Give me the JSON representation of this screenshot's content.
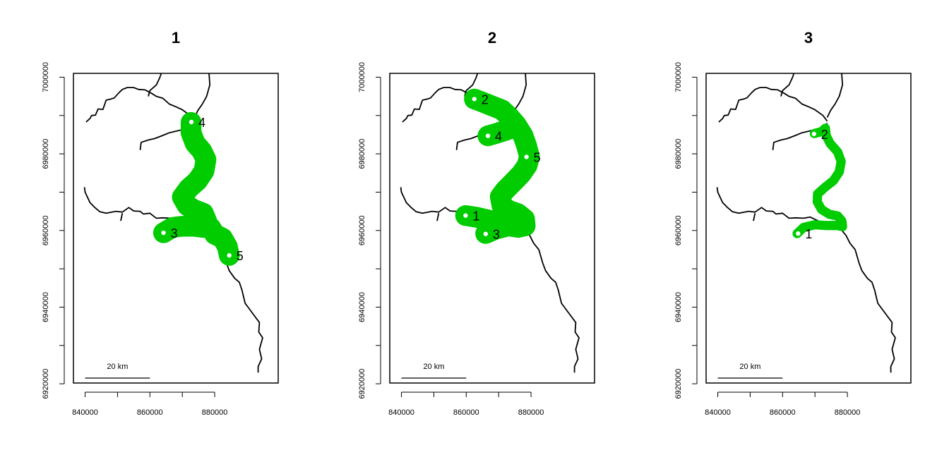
{
  "chart_data": {
    "type": "map",
    "x_ticks": [
      840000,
      860000,
      880000
    ],
    "x_tick_labels": [
      "840000",
      "860000",
      "880000"
    ],
    "y_ticks": [
      6920000,
      6940000,
      6960000,
      6980000,
      7000000
    ],
    "y_tick_labels": [
      "6920000",
      "6940000",
      "6960000",
      "6980000",
      "7000000"
    ],
    "xlim": [
      836400,
      899600
    ],
    "ylim": [
      6920200,
      7001000
    ],
    "scale_bar": {
      "label": "20 km",
      "length": 20000
    },
    "colors": {
      "path": "#00cc00",
      "river": "#000000"
    },
    "rivers": [
      {
        "name": "river-main",
        "points": [
          [
            893400,
            6922900
          ],
          [
            893400,
            6924500
          ],
          [
            894500,
            6926500
          ],
          [
            893800,
            6929000
          ],
          [
            894800,
            6932000
          ],
          [
            893600,
            6933500
          ],
          [
            893800,
            6936000
          ],
          [
            891600,
            6938500
          ],
          [
            889400,
            6941000
          ],
          [
            888400,
            6944500
          ],
          [
            887600,
            6946500
          ],
          [
            886200,
            6947500
          ],
          [
            884500,
            6949500
          ],
          [
            883600,
            6951500
          ],
          [
            882400,
            6955000
          ],
          [
            880800,
            6956700
          ],
          [
            879600,
            6958700
          ],
          [
            878000,
            6960300
          ],
          [
            877000,
            6961500
          ],
          [
            873000,
            6961200
          ],
          [
            871000,
            6962500
          ],
          [
            868500,
            6963500
          ],
          [
            866500,
            6963200
          ],
          [
            864000,
            6963300
          ],
          [
            862000,
            6963200
          ],
          [
            860000,
            6964500
          ],
          [
            858000,
            6964300
          ],
          [
            857000,
            6965000
          ],
          [
            855000,
            6965100
          ],
          [
            853500,
            6966000
          ],
          [
            851500,
            6964800
          ],
          [
            849500,
            6965000
          ],
          [
            846500,
            6964500
          ],
          [
            844500,
            6964900
          ],
          [
            843000,
            6966000
          ],
          [
            841500,
            6967300
          ],
          [
            840000,
            6970000
          ],
          [
            839800,
            6971300
          ]
        ]
      },
      {
        "name": "river-west-branch",
        "points": [
          [
            840300,
            6988300
          ],
          [
            841500,
            6989200
          ],
          [
            842000,
            6990000
          ],
          [
            843200,
            6990100
          ],
          [
            844000,
            6991700
          ],
          [
            845500,
            6991600
          ],
          [
            846500,
            6994000
          ],
          [
            848000,
            6994300
          ],
          [
            849000,
            6994600
          ],
          [
            850500,
            6996000
          ],
          [
            851500,
            6996800
          ],
          [
            853000,
            6997300
          ],
          [
            855000,
            6997300
          ],
          [
            856500,
            6996800
          ],
          [
            858500,
            6996700
          ],
          [
            860500,
            6995800
          ],
          [
            862000,
            6995000
          ],
          [
            864000,
            6994500
          ],
          [
            866000,
            6993000
          ],
          [
            868000,
            6992300
          ],
          [
            870000,
            6991500
          ],
          [
            872500,
            6990000
          ],
          [
            873800,
            6988500
          ]
        ]
      },
      {
        "name": "river-north-branch",
        "points": [
          [
            866000,
            7008000
          ],
          [
            865500,
            7006500
          ],
          [
            865000,
            7005000
          ],
          [
            864500,
            7002000
          ],
          [
            863500,
            7001000
          ],
          [
            863000,
            6999800
          ],
          [
            862000,
            6998000
          ],
          [
            860000,
            6996500
          ],
          [
            859500,
            6995000
          ]
        ]
      },
      {
        "name": "river-east-branch",
        "points": [
          [
            877700,
            7010500
          ],
          [
            878500,
            7009500
          ],
          [
            878800,
            7005500
          ],
          [
            878200,
            7001500
          ],
          [
            878500,
            6998000
          ],
          [
            877500,
            6995000
          ],
          [
            876200,
            6993000
          ],
          [
            874800,
            6991300
          ],
          [
            873800,
            6989500
          ]
        ]
      },
      {
        "name": "river-mid-branch",
        "points": [
          [
            857000,
            6981000
          ],
          [
            857300,
            6983000
          ],
          [
            859500,
            6983600
          ],
          [
            861500,
            6984000
          ],
          [
            864000,
            6984800
          ],
          [
            866000,
            6985500
          ],
          [
            868500,
            6986000
          ],
          [
            871000,
            6986500
          ],
          [
            873000,
            6987300
          ],
          [
            873800,
            6988000
          ]
        ]
      },
      {
        "name": "river-south-spur",
        "points": [
          [
            851000,
            6962500
          ],
          [
            851500,
            6964500
          ]
        ]
      }
    ],
    "panels": [
      {
        "title": "1",
        "path_width_m": 5400,
        "path": [
          [
            864200,
            6959400
          ],
          [
            867000,
            6960800
          ],
          [
            870000,
            6961100
          ],
          [
            873500,
            6961100
          ],
          [
            876500,
            6960800
          ],
          [
            878800,
            6960700
          ],
          [
            880000,
            6959000
          ],
          [
            882400,
            6958000
          ],
          [
            883900,
            6955800
          ],
          [
            884500,
            6953500
          ]
        ],
        "path_extra": [
          [
            [
              876500,
              6960800
            ],
            [
              877500,
              6962500
            ],
            [
              876500,
              6964500
            ],
            [
              873500,
              6965500
            ],
            [
              871500,
              6966500
            ],
            [
              870000,
              6968700
            ],
            [
              872000,
              6971000
            ],
            [
              874700,
              6973000
            ],
            [
              876700,
              6975500
            ],
            [
              877300,
              6978500
            ],
            [
              876000,
              6980800
            ],
            [
              874000,
              6982700
            ],
            [
              872700,
              6985500
            ],
            [
              872700,
              6988200
            ]
          ]
        ],
        "points": [
          {
            "label": "3",
            "x": 864200,
            "y": 6959400,
            "filled": false,
            "side": "right"
          },
          {
            "label": "4",
            "x": 872800,
            "y": 6988300,
            "filled": true,
            "side": "right"
          },
          {
            "label": "5",
            "x": 884500,
            "y": 6953500,
            "filled": false,
            "side": "right"
          }
        ]
      },
      {
        "title": "2",
        "path_width_m": 5400,
        "path": [
          [
            862500,
            6994300
          ],
          [
            865000,
            6993500
          ],
          [
            868000,
            6992500
          ],
          [
            871000,
            6991500
          ],
          [
            873500,
            6989500
          ],
          [
            875500,
            6987500
          ],
          [
            877500,
            6984800
          ],
          [
            878600,
            6982200
          ],
          [
            879500,
            6979300
          ],
          [
            878800,
            6977000
          ],
          [
            877000,
            6974800
          ],
          [
            874600,
            6972700
          ],
          [
            872000,
            6970500
          ],
          [
            870500,
            6968800
          ],
          [
            871000,
            6966500
          ],
          [
            873000,
            6965300
          ],
          [
            876000,
            6964400
          ],
          [
            878000,
            6963000
          ],
          [
            878200,
            6961200
          ],
          [
            876000,
            6960800
          ],
          [
            873000,
            6961200
          ],
          [
            869000,
            6960300
          ],
          [
            866000,
            6959200
          ]
        ],
        "path_extra": [
          [
            [
              859800,
              6963900
            ],
            [
              863500,
              6963400
            ],
            [
              866500,
              6962800
            ],
            [
              870000,
              6962100
            ],
            [
              874000,
              6961500
            ]
          ],
          [
            [
              866700,
              6984700
            ],
            [
              869500,
              6985400
            ],
            [
              872500,
              6986200
            ],
            [
              874300,
              6986900
            ]
          ]
        ],
        "points": [
          {
            "label": "1",
            "x": 859800,
            "y": 6963900,
            "filled": false,
            "side": "right"
          },
          {
            "label": "2",
            "x": 862500,
            "y": 6994300,
            "filled": true,
            "side": "right"
          },
          {
            "label": "3",
            "x": 866000,
            "y": 6959100,
            "filled": false,
            "side": "right"
          },
          {
            "label": "4",
            "x": 866700,
            "y": 6984700,
            "filled": true,
            "side": "right"
          },
          {
            "label": "5",
            "x": 878600,
            "y": 6979200,
            "filled": true,
            "side": "right"
          }
        ]
      },
      {
        "title": "3",
        "path_width_m": 2400,
        "path": [
          [
            864500,
            6959200
          ],
          [
            866500,
            6960800
          ],
          [
            870000,
            6961500
          ],
          [
            873500,
            6961300
          ],
          [
            876800,
            6961300
          ],
          [
            878500,
            6961000
          ],
          [
            878300,
            6962500
          ],
          [
            877000,
            6963800
          ],
          [
            874500,
            6964200
          ],
          [
            872000,
            6965500
          ],
          [
            870700,
            6967500
          ],
          [
            870800,
            6969500
          ],
          [
            873000,
            6971200
          ],
          [
            875700,
            6973000
          ],
          [
            877500,
            6975300
          ],
          [
            878100,
            6978000
          ],
          [
            877000,
            6980500
          ],
          [
            874700,
            6982700
          ],
          [
            873500,
            6984700
          ],
          [
            873200,
            6986700
          ],
          [
            872000,
            6985800
          ],
          [
            869800,
            6985300
          ]
        ],
        "path_extra": [],
        "points": [
          {
            "label": "1",
            "x": 864800,
            "y": 6959200,
            "filled": false,
            "side": "right"
          },
          {
            "label": "2",
            "x": 869700,
            "y": 6985200,
            "filled": false,
            "side": "right"
          }
        ]
      }
    ]
  }
}
